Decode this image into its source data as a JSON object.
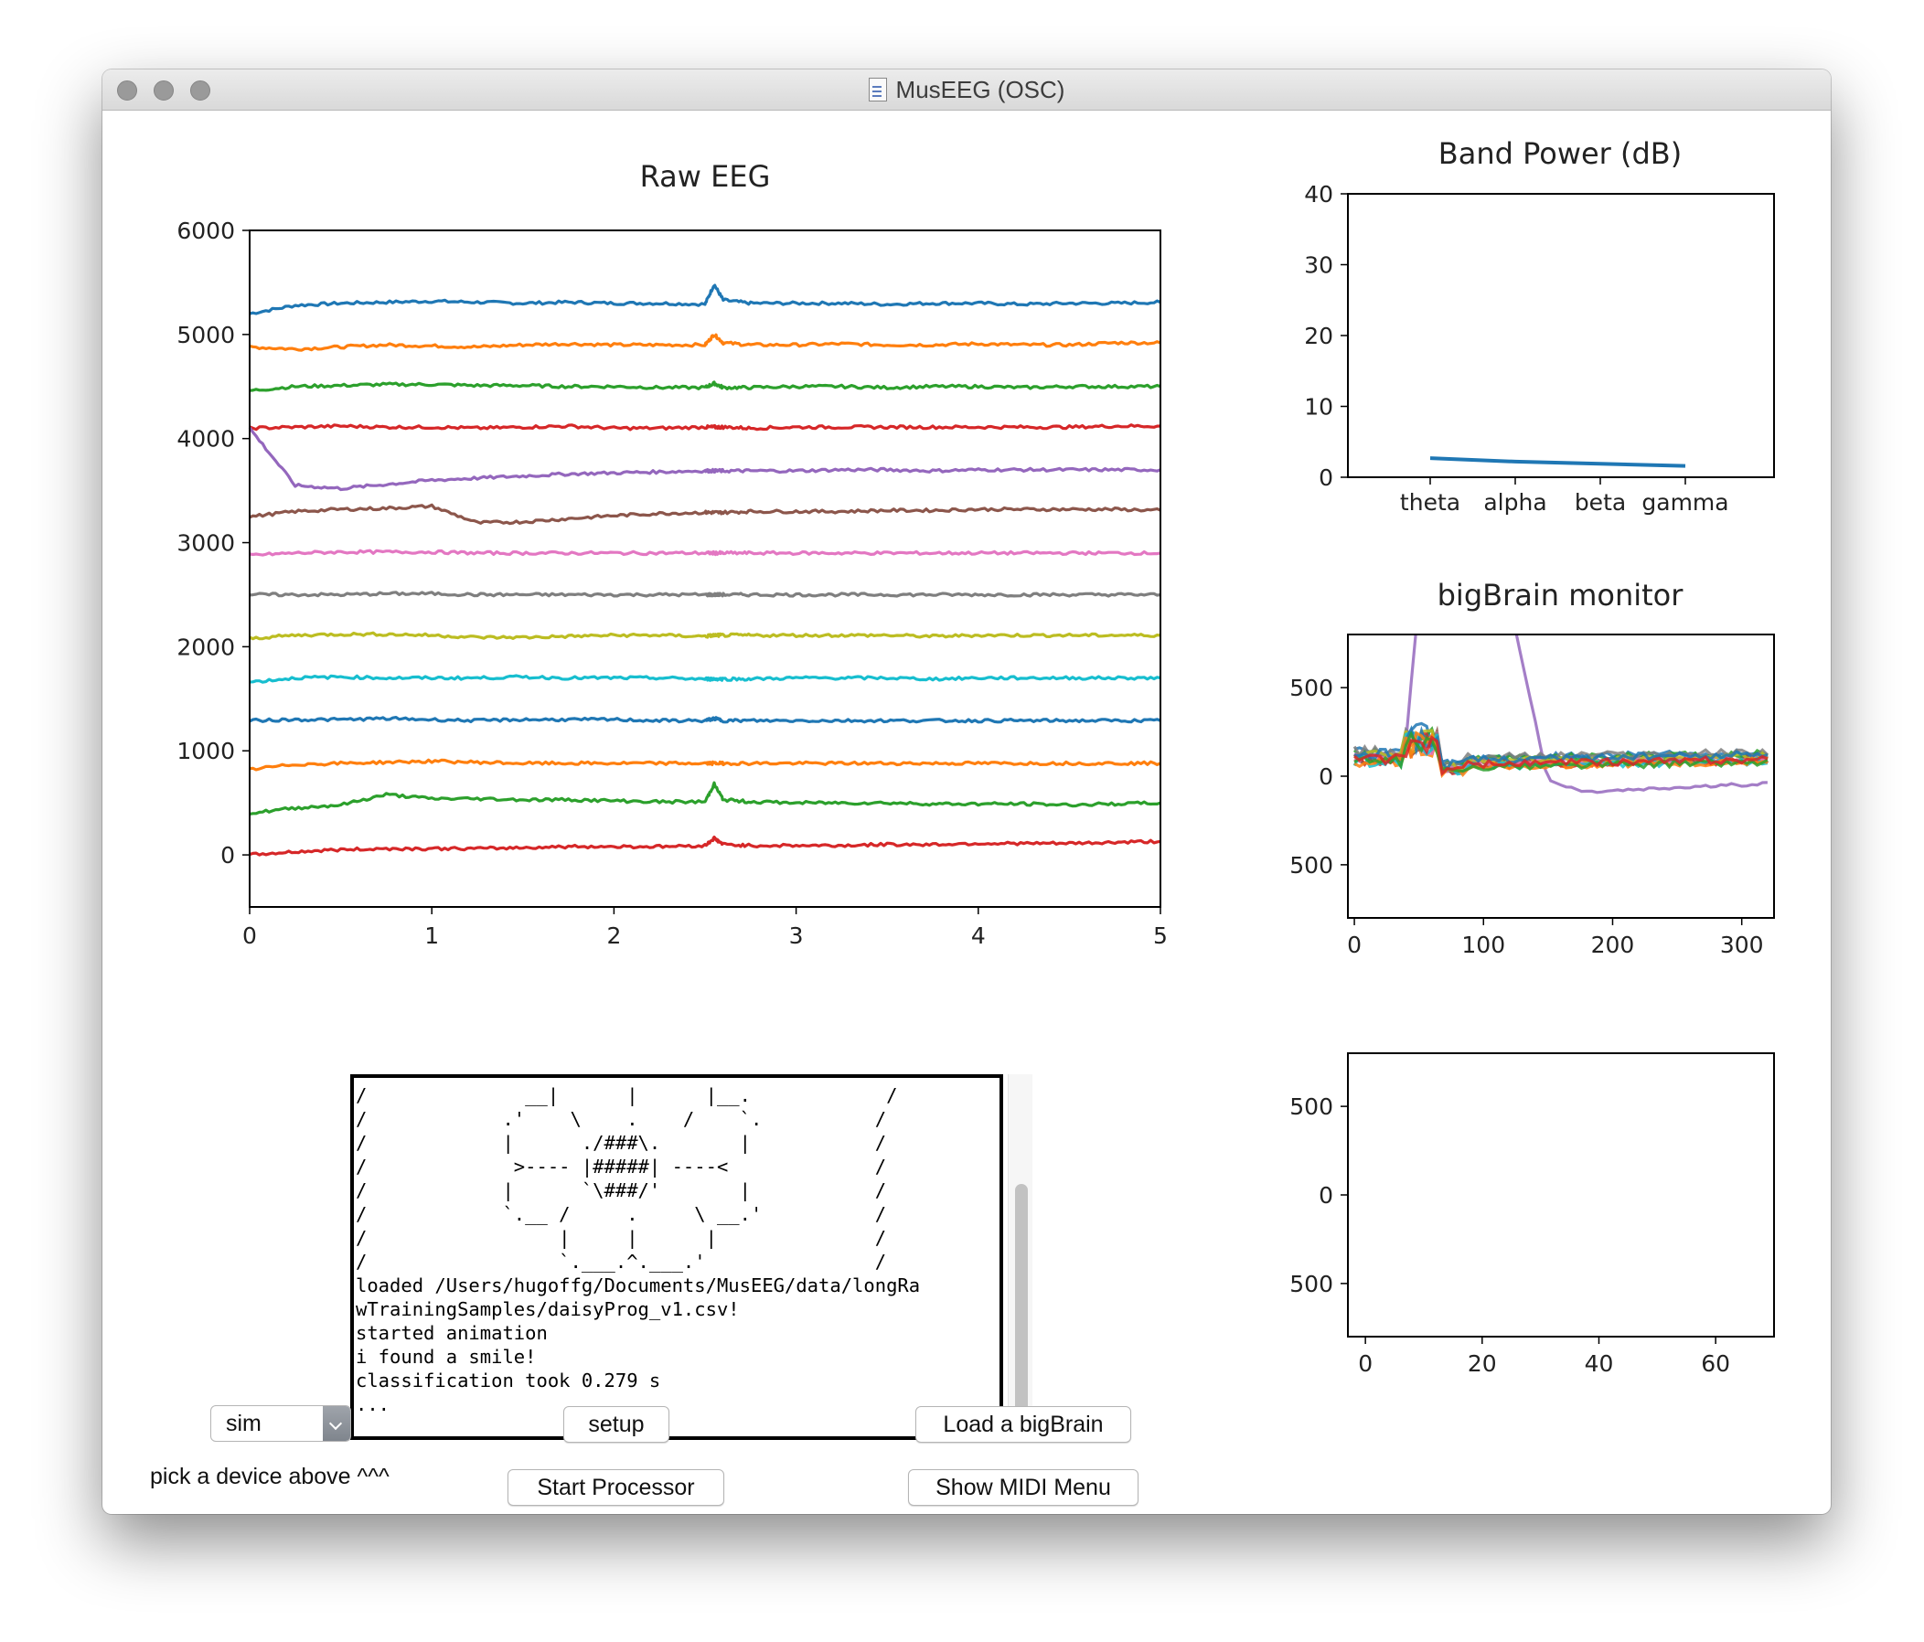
{
  "window": {
    "title": "MusEEG (OSC)"
  },
  "console": {
    "ascii_art": [
      "/              __|      |      |__.            /",
      "/            .'    \\    .    /    `.          /",
      "/            |      ./###\\.       |           /",
      "/             >---- |#####| ----<             /",
      "/            |      `\\###/'       |           /",
      "/            `.__ /     .     \\ __.'          /",
      "/                 |     |      |              /",
      "/                 `.___.^.___.'               /"
    ],
    "log_lines": [
      "loaded /Users/hugoffg/Documents/MusEEG/data/longRa",
      "wTrainingSamples/daisyProg_v1.csv!",
      "started animation",
      "i found a smile!",
      "classification took 0.279 s",
      "..."
    ]
  },
  "controls": {
    "device_select_value": "sim",
    "device_hint": "pick a device above ^^^",
    "setup_label": "setup",
    "start_processor_label": "Start Processor",
    "load_bigbrain_label": "Load a bigBrain",
    "show_midi_label": "Show MIDI Menu"
  },
  "colors": {
    "series": [
      "#1f77b4",
      "#ff7f0e",
      "#2ca02c",
      "#d62728",
      "#9467bd",
      "#8c564b",
      "#e377c2",
      "#7f7f7f",
      "#bcbd22",
      "#17becf",
      "#1f77b4",
      "#ff7f0e",
      "#2ca02c",
      "#d62728"
    ]
  },
  "chart_data": [
    {
      "type": "line",
      "title": "Raw EEG",
      "xlim": [
        0,
        5
      ],
      "ylim": [
        -500,
        6000
      ],
      "xticks": [
        0,
        1,
        2,
        3,
        4,
        5
      ],
      "yticks": [
        0,
        1000,
        2000,
        3000,
        4000,
        5000,
        6000
      ],
      "x": [
        0,
        0.25,
        0.5,
        0.75,
        1,
        1.25,
        1.5,
        1.75,
        2,
        2.25,
        2.5,
        2.55,
        2.6,
        2.75,
        3,
        3.25,
        3.5,
        3.75,
        4,
        4.25,
        4.5,
        4.75,
        5
      ],
      "series": [
        {
          "values": [
            5200,
            5280,
            5300,
            5310,
            5320,
            5310,
            5300,
            5310,
            5300,
            5300,
            5290,
            5480,
            5330,
            5300,
            5300,
            5300,
            5290,
            5300,
            5300,
            5290,
            5300,
            5300,
            5310
          ]
        },
        {
          "values": [
            4880,
            4860,
            4880,
            4900,
            4890,
            4880,
            4900,
            4910,
            4900,
            4900,
            4900,
            5000,
            4920,
            4900,
            4900,
            4910,
            4900,
            4900,
            4910,
            4900,
            4900,
            4920,
            4920
          ]
        },
        {
          "values": [
            4460,
            4500,
            4510,
            4520,
            4520,
            4510,
            4510,
            4500,
            4500,
            4490,
            4490,
            4530,
            4490,
            4490,
            4500,
            4500,
            4490,
            4500,
            4500,
            4490,
            4500,
            4500,
            4500
          ]
        },
        {
          "values": [
            4100,
            4110,
            4120,
            4110,
            4110,
            4100,
            4110,
            4120,
            4100,
            4100,
            4110,
            4110,
            4110,
            4100,
            4110,
            4110,
            4110,
            4110,
            4110,
            4110,
            4110,
            4120,
            4120
          ]
        },
        {
          "values": [
            4100,
            3550,
            3520,
            3560,
            3600,
            3620,
            3640,
            3660,
            3670,
            3680,
            3690,
            3690,
            3690,
            3690,
            3690,
            3700,
            3700,
            3690,
            3700,
            3700,
            3700,
            3700,
            3700
          ]
        },
        {
          "values": [
            3250,
            3300,
            3320,
            3330,
            3350,
            3190,
            3200,
            3230,
            3260,
            3280,
            3290,
            3290,
            3290,
            3300,
            3300,
            3300,
            3310,
            3310,
            3320,
            3320,
            3320,
            3320,
            3310
          ]
        },
        {
          "values": [
            2880,
            2900,
            2910,
            2910,
            2910,
            2900,
            2900,
            2900,
            2900,
            2900,
            2900,
            2900,
            2900,
            2900,
            2900,
            2900,
            2900,
            2900,
            2900,
            2900,
            2900,
            2900,
            2900
          ]
        },
        {
          "values": [
            2500,
            2500,
            2500,
            2510,
            2510,
            2500,
            2500,
            2500,
            2500,
            2500,
            2500,
            2500,
            2500,
            2500,
            2500,
            2500,
            2500,
            2500,
            2500,
            2500,
            2500,
            2500,
            2500
          ]
        },
        {
          "values": [
            2080,
            2110,
            2120,
            2120,
            2110,
            2090,
            2090,
            2100,
            2110,
            2110,
            2100,
            2110,
            2110,
            2110,
            2110,
            2110,
            2110,
            2100,
            2110,
            2110,
            2110,
            2110,
            2110
          ]
        },
        {
          "values": [
            1660,
            1700,
            1710,
            1700,
            1700,
            1700,
            1710,
            1700,
            1700,
            1700,
            1690,
            1690,
            1690,
            1690,
            1700,
            1700,
            1700,
            1690,
            1700,
            1700,
            1700,
            1700,
            1700
          ]
        },
        {
          "values": [
            1290,
            1300,
            1300,
            1310,
            1300,
            1290,
            1300,
            1300,
            1300,
            1290,
            1290,
            1310,
            1290,
            1290,
            1290,
            1290,
            1290,
            1290,
            1290,
            1290,
            1290,
            1290,
            1290
          ]
        },
        {
          "values": [
            820,
            870,
            880,
            890,
            900,
            890,
            880,
            880,
            880,
            880,
            880,
            880,
            880,
            880,
            880,
            880,
            880,
            880,
            880,
            880,
            880,
            880,
            880
          ]
        },
        {
          "values": [
            400,
            450,
            480,
            580,
            540,
            540,
            530,
            530,
            520,
            510,
            510,
            680,
            530,
            510,
            500,
            500,
            500,
            490,
            490,
            490,
            480,
            490,
            500
          ]
        },
        {
          "values": [
            0,
            30,
            50,
            60,
            60,
            60,
            70,
            80,
            80,
            80,
            90,
            160,
            100,
            90,
            90,
            90,
            100,
            100,
            110,
            110,
            110,
            120,
            130
          ]
        }
      ]
    },
    {
      "type": "line",
      "title": "Band Power (dB)",
      "categories": [
        "theta",
        "alpha",
        "beta",
        "gamma"
      ],
      "ylim": [
        0,
        40
      ],
      "yticks": [
        0,
        10,
        20,
        30,
        40
      ],
      "series": [
        {
          "values": [
            2.7,
            2.2,
            1.9,
            1.6
          ]
        }
      ]
    },
    {
      "type": "line",
      "title": "bigBrain monitor",
      "xlim": [
        -5,
        325
      ],
      "ylim": [
        -800,
        800
      ],
      "xticks": [
        0,
        100,
        200,
        300
      ],
      "ytick_labels": [
        "500",
        "0",
        "500"
      ],
      "ytick_values": [
        500,
        0,
        -500
      ]
    },
    {
      "type": "line",
      "title": "",
      "xlim": [
        -3,
        70
      ],
      "ylim": [
        -800,
        800
      ],
      "xticks": [
        0,
        20,
        40,
        60
      ],
      "ytick_labels": [
        "500",
        "0",
        "500"
      ],
      "ytick_values": [
        500,
        0,
        -500
      ]
    }
  ]
}
